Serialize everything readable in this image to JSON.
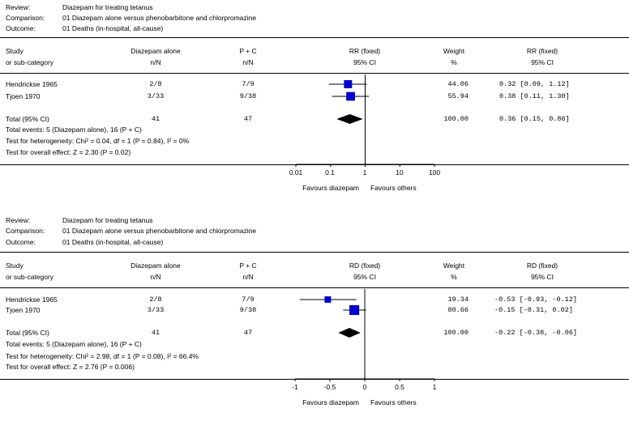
{
  "panels": [
    {
      "review_label": "Review:",
      "review": "Diazepam for treating tetanus",
      "comparison_label": "Comparison:",
      "comparison": "01 Diazepam alone versus phenobarbitone and chlorpromazine",
      "outcome_label": "Outcome:",
      "outcome": "01 Deaths (in-hospital, all-cause)",
      "headers": {
        "study1": "Study",
        "study2": "or sub-category",
        "group1a": "Diazepam alone",
        "group1b": "n/N",
        "group2a": "P + C",
        "group2b": "n/N",
        "effect1": "RR (fixed)",
        "effect2": "95% CI",
        "weight1": "Weight",
        "weight2": "%",
        "effect_col1": "RR (fixed)",
        "effect_col2": "95% CI"
      },
      "rows": [
        {
          "study": "Hendrickse 1965",
          "g1": "2/8",
          "g2": "7/9",
          "weight": "44.06",
          "ci_text": "0.32 [0.09, 1.12]"
        },
        {
          "study": "Tjoen 1970",
          "g1": "3/33",
          "g2": "9/38",
          "weight": "55.94",
          "ci_text": "0.38 [0.11, 1.30]"
        }
      ],
      "total": {
        "label": "Total (95% CI)",
        "g1": "41",
        "g2": "47",
        "weight": "100.00",
        "ci_text": "0.36 [0.15, 0.86]"
      },
      "notes": [
        "Total events: 5 (Diazepam alone), 16 (P + C)",
        "Test for heterogeneity: Chi² = 0.04, df = 1 (P = 0.84), I² = 0%",
        "Test for overall effect: Z = 2.30 (P = 0.02)"
      ],
      "ticks": [
        "0.01",
        "0.1",
        "1",
        "10",
        "100"
      ],
      "favours_left": "Favours diazepam",
      "favours_right": "Favours others"
    },
    {
      "review_label": "Review:",
      "review": "Diazepam for treating tetanus",
      "comparison_label": "Comparison:",
      "comparison": "01 Diazepam alone versus phenobarbitone and chlorpromazine",
      "outcome_label": "Outcome:",
      "outcome": "01 Deaths (in-hospital, all-cause)",
      "headers": {
        "study1": "Study",
        "study2": "or sub-category",
        "group1a": "Diazepam alone",
        "group1b": "n/N",
        "group2a": "P + C",
        "group2b": "n/N",
        "effect1": "RD (fixed)",
        "effect2": "95% CI",
        "weight1": "Weight",
        "weight2": "%",
        "effect_col1": "RD (fixed)",
        "effect_col2": "95% CI"
      },
      "rows": [
        {
          "study": "Hendrickse 1965",
          "g1": "2/8",
          "g2": "7/9",
          "weight": "19.34",
          "ci_text": "-0.53 [-0.93, -0.12]"
        },
        {
          "study": "Tjoen 1970",
          "g1": "3/33",
          "g2": "9/38",
          "weight": "80.66",
          "ci_text": "-0.15 [-0.31, 0.02]"
        }
      ],
      "total": {
        "label": "Total (95% CI)",
        "g1": "41",
        "g2": "47",
        "weight": "100.00",
        "ci_text": "-0.22 [-0.38, -0.06]"
      },
      "notes": [
        "Total events: 5 (Diazepam alone), 16 (P + C)",
        "Test for heterogeneity: Chi² = 2.98, df = 1 (P = 0.08), I² = 66.4%",
        "Test for overall effect: Z = 2.76 (P = 0.006)"
      ],
      "ticks": [
        "-1",
        "-0.5",
        "0",
        "0.5",
        "1"
      ],
      "favours_left": "Favours diazepam",
      "favours_right": "Favours others"
    }
  ],
  "chart_data": [
    {
      "type": "forest",
      "measure": "RR (fixed)",
      "scale": "log",
      "xlim": [
        0.01,
        100
      ],
      "x_ticks": [
        0.01,
        0.1,
        1,
        10,
        100
      ],
      "null_value": 1,
      "studies": [
        {
          "name": "Hendrickse 1965",
          "estimate": 0.32,
          "ci_low": 0.09,
          "ci_high": 1.12,
          "weight": 44.06
        },
        {
          "name": "Tjoen 1970",
          "estimate": 0.38,
          "ci_low": 0.11,
          "ci_high": 1.3,
          "weight": 55.94
        }
      ],
      "pooled": {
        "estimate": 0.36,
        "ci_low": 0.15,
        "ci_high": 0.86
      },
      "marker_color": "#0000cc"
    },
    {
      "type": "forest",
      "measure": "RD (fixed)",
      "scale": "linear",
      "xlim": [
        -1,
        1
      ],
      "x_ticks": [
        -1,
        -0.5,
        0,
        0.5,
        1
      ],
      "null_value": 0,
      "studies": [
        {
          "name": "Hendrickse 1965",
          "estimate": -0.53,
          "ci_low": -0.93,
          "ci_high": -0.12,
          "weight": 19.34
        },
        {
          "name": "Tjoen 1970",
          "estimate": -0.15,
          "ci_low": -0.31,
          "ci_high": 0.02,
          "weight": 80.66
        }
      ],
      "pooled": {
        "estimate": -0.22,
        "ci_low": -0.38,
        "ci_high": -0.06
      },
      "marker_color": "#0000cc"
    }
  ]
}
